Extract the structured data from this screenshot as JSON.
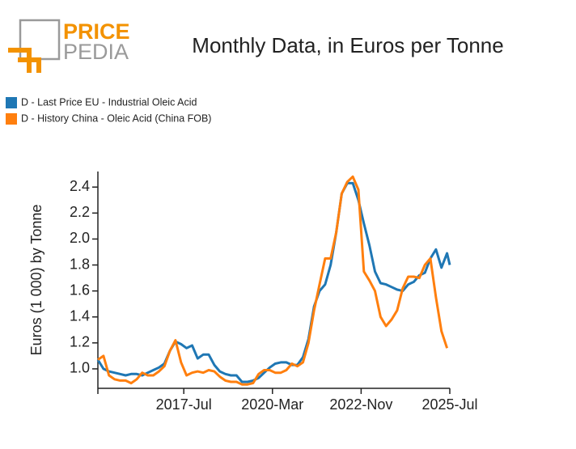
{
  "logo": {
    "top": "PRICE",
    "bottom": "PEDIA"
  },
  "chart_data": {
    "type": "line",
    "title": "Monthly Data, in Euros per Tonne",
    "y_label": "Euros (1 000) by Tonne",
    "legend": "top-left",
    "x": [
      "2014-12",
      "2015-02",
      "2015-04",
      "2015-06",
      "2015-08",
      "2015-10",
      "2015-12",
      "2016-02",
      "2016-04",
      "2016-06",
      "2016-08",
      "2016-10",
      "2016-12",
      "2017-02",
      "2017-04",
      "2017-06",
      "2017-08",
      "2017-10",
      "2017-12",
      "2018-02",
      "2018-04",
      "2018-06",
      "2018-08",
      "2018-10",
      "2018-12",
      "2019-02",
      "2019-04",
      "2019-06",
      "2019-08",
      "2019-10",
      "2019-12",
      "2020-02",
      "2020-04",
      "2020-06",
      "2020-08",
      "2020-10",
      "2020-12",
      "2021-02",
      "2021-04",
      "2021-06",
      "2021-08",
      "2021-10",
      "2021-12",
      "2022-02",
      "2022-04",
      "2022-06",
      "2022-08",
      "2022-10",
      "2022-12",
      "2023-02",
      "2023-04",
      "2023-06",
      "2023-08",
      "2023-10",
      "2023-12",
      "2024-02",
      "2024-04",
      "2024-06",
      "2024-08",
      "2024-10",
      "2024-12",
      "2025-02",
      "2025-04",
      "2025-06",
      "2025-07"
    ],
    "series": [
      {
        "name": "D - Last Price EU - Industrial Oleic Acid",
        "color": "#1f77b4",
        "values": [
          1.07,
          1.0,
          0.98,
          0.97,
          0.96,
          0.95,
          0.96,
          0.96,
          0.95,
          0.97,
          0.99,
          1.01,
          1.04,
          1.14,
          1.21,
          1.19,
          1.16,
          1.18,
          1.08,
          1.11,
          1.11,
          1.03,
          0.98,
          0.96,
          0.95,
          0.95,
          0.9,
          0.9,
          0.91,
          0.93,
          0.97,
          1.01,
          1.04,
          1.05,
          1.05,
          1.03,
          1.03,
          1.09,
          1.23,
          1.48,
          1.6,
          1.65,
          1.8,
          2.05,
          2.35,
          2.43,
          2.43,
          2.3,
          2.12,
          1.95,
          1.75,
          1.66,
          1.65,
          1.63,
          1.61,
          1.6,
          1.65,
          1.67,
          1.72,
          1.74,
          1.85,
          1.92,
          1.78,
          1.89,
          1.8
        ]
      },
      {
        "name": "D - History China - Oleic Acid (China FOB)",
        "color": "#ff7f0e",
        "values": [
          1.07,
          1.1,
          0.95,
          0.92,
          0.91,
          0.91,
          0.89,
          0.92,
          0.97,
          0.95,
          0.95,
          0.98,
          1.02,
          1.14,
          1.22,
          1.05,
          0.95,
          0.97,
          0.98,
          0.97,
          0.99,
          0.98,
          0.94,
          0.91,
          0.9,
          0.9,
          0.88,
          0.88,
          0.89,
          0.96,
          0.99,
          0.99,
          0.97,
          0.97,
          0.99,
          1.04,
          1.02,
          1.05,
          1.2,
          1.45,
          1.65,
          1.85,
          1.85,
          2.05,
          2.35,
          2.44,
          2.48,
          2.38,
          1.75,
          1.68,
          1.6,
          1.4,
          1.33,
          1.38,
          1.45,
          1.62,
          1.71,
          1.71,
          1.7,
          1.8,
          1.85,
          1.55,
          1.29,
          1.16,
          null
        ]
      }
    ],
    "xlim": [
      "2014-12",
      "2025-07"
    ],
    "xticks": [
      {
        "value": "2017-07",
        "label": "2017-Jul"
      },
      {
        "value": "2020-03",
        "label": "2020-Mar"
      },
      {
        "value": "2022-11",
        "label": "2022-Nov"
      },
      {
        "value": "2025-07",
        "label": "2025-Jul"
      }
    ],
    "ylim": [
      0.85,
      2.52
    ],
    "yticks": [
      {
        "value": 1,
        "label": "1.0"
      },
      1.2,
      1.4,
      1.6,
      1.8,
      {
        "value": 2,
        "label": "2.0"
      },
      2.2,
      2.4
    ],
    "grid": false
  }
}
